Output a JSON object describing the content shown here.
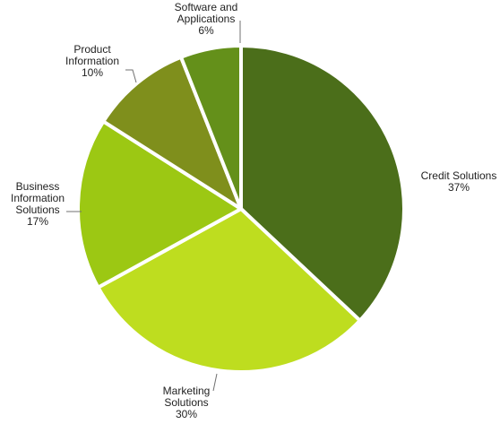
{
  "chart_data": {
    "type": "pie",
    "title": "",
    "legend": "none",
    "slices": [
      {
        "label_lines": [
          "Credit Solutions"
        ],
        "name": "Credit Solutions",
        "value": 37,
        "value_label": "37%",
        "color": "#4b6e1a"
      },
      {
        "label_lines": [
          "Marketing",
          "Solutions"
        ],
        "name": "Marketing Solutions",
        "value": 30,
        "value_label": "30%",
        "color": "#bedd1f"
      },
      {
        "label_lines": [
          "Business",
          "Information",
          "Solutions"
        ],
        "name": "Business Information Solutions",
        "value": 17,
        "value_label": "17%",
        "color": "#9cc813"
      },
      {
        "label_lines": [
          "Product",
          "Information"
        ],
        "name": "Product Information",
        "value": 10,
        "value_label": "10%",
        "color": "#7f8f1c"
      },
      {
        "label_lines": [
          "Software and",
          "Applications"
        ],
        "name": "Software and Applications",
        "value": 6,
        "value_label": "6%",
        "color": "#64901a"
      }
    ]
  }
}
